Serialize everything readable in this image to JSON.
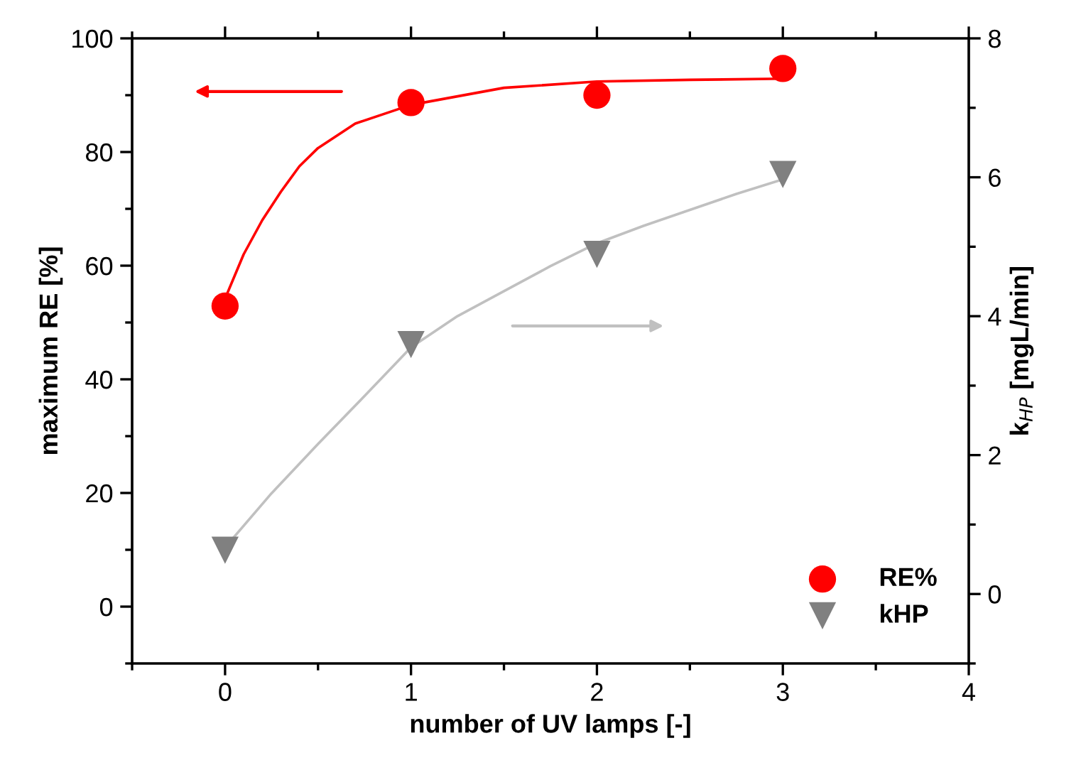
{
  "chart_data": {
    "type": "scatter",
    "xlabel": "number of UV lamps [-]",
    "ylabel": "maximum RE [%]",
    "y2label": "k$_{HP}$ [mgL/min]",
    "xlim": [
      -0.5,
      4
    ],
    "xticks": [
      0,
      1,
      2,
      3,
      4
    ],
    "ylim": [
      -10,
      100
    ],
    "yticks": [
      0,
      20,
      40,
      60,
      80,
      100
    ],
    "y2lim": [
      -1,
      8
    ],
    "y2ticks": [
      0,
      2,
      4,
      6,
      8
    ],
    "legend": "bottom right",
    "grid": false,
    "series": [
      {
        "name": "RE%",
        "marker": "circle",
        "color": "#ff0000",
        "x": [
          0,
          1,
          2,
          3
        ],
        "values": [
          52.9,
          88.7,
          90.0,
          94.7
        ]
      },
      {
        "name": "kHP",
        "marker": "triangle",
        "color": "#808080",
        "axis": "y2",
        "x": [
          0,
          1,
          2,
          3
        ],
        "values": [
          0.63,
          3.59,
          4.89,
          6.04
        ]
      },
      {
        "type": "line",
        "color": "#ff0000",
        "x": [
          0,
          0.1,
          0.2,
          0.3,
          0.4,
          0.5,
          0.7,
          1,
          1.5,
          2,
          2.5,
          3
        ],
        "values": [
          54.2,
          62,
          68,
          73,
          77.5,
          80.7,
          85,
          88.3,
          91.3,
          92.4,
          92.7,
          92.9
        ]
      },
      {
        "type": "line",
        "color": "#c0c0c0",
        "axis": "y2",
        "x": [
          0,
          0.25,
          0.5,
          0.75,
          1,
          1.25,
          1.5,
          1.75,
          2,
          2.25,
          2.5,
          2.75,
          3
        ],
        "values": [
          0.67,
          1.45,
          2.16,
          2.85,
          3.55,
          4.0,
          4.36,
          4.72,
          5.05,
          5.3,
          5.53,
          5.76,
          5.97
        ]
      }
    ]
  }
}
